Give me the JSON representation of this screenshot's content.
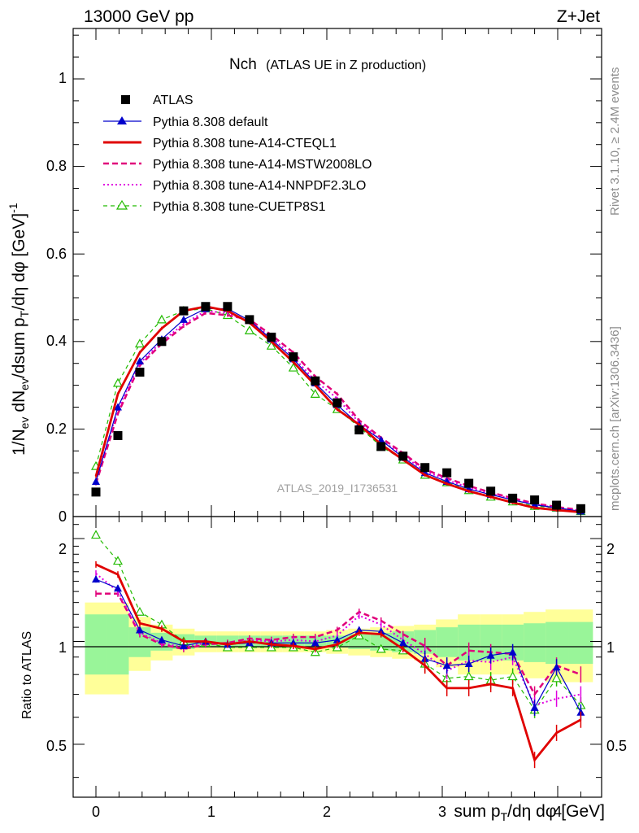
{
  "header": {
    "left": "13000 GeV pp",
    "right": "Z+Jet"
  },
  "side_text": {
    "rivet": "Rivet 3.1.10, ≥ 2.4M events",
    "mcplots": "mcplots.cern.ch [arXiv:1306.3436]"
  },
  "colors": {
    "atlas": "#000000",
    "default": "#0000cc",
    "cteql1": "#e00000",
    "mstw": "#e0007a",
    "nnpdf": "#e000e0",
    "cuetp8s1": "#22bb00",
    "band_inner": "#99f599",
    "band_outer": "#ffff99"
  },
  "chart_data": {
    "type": "line",
    "title": "Nch",
    "subtitle": "(ATLAS UE in Z production)",
    "analysis_tag": "ATLAS_2019_I1736531",
    "xlabel": "sum p_T/dη dφ [GeV]",
    "ylabel": "1/N_ev dN_ev/dsum p_T/dη dφ [GeV]^-1",
    "ratio_ylabel": "Ratio to ATLAS",
    "xlim": [
      -0.1,
      4.35
    ],
    "ylim": [
      0,
      1.12
    ],
    "ratio_ylim": [
      0.35,
      2.32
    ],
    "x_ticks": [
      "0",
      "1",
      "2",
      "3",
      "4"
    ],
    "y_ticks": [
      "0",
      "0.2",
      "0.4",
      "0.6",
      "0.8",
      "1"
    ],
    "ratio_ticks": [
      "0.5",
      "1",
      "2"
    ],
    "grid": false,
    "legend_position": "top-left",
    "x": [
      0.0,
      0.19,
      0.38,
      0.57,
      0.76,
      0.95,
      1.14,
      1.33,
      1.52,
      1.71,
      1.9,
      2.09,
      2.28,
      2.47,
      2.66,
      2.85,
      3.04,
      3.23,
      3.42,
      3.61,
      3.8,
      3.99,
      4.2
    ],
    "atlas": [
      0.056,
      0.185,
      0.33,
      0.4,
      0.47,
      0.48,
      0.48,
      0.45,
      0.41,
      0.365,
      0.31,
      0.26,
      0.198,
      0.16,
      0.138,
      0.112,
      0.1,
      0.076,
      0.058,
      0.042,
      0.038,
      0.026,
      0.018
    ],
    "ratio_band_inner": [
      0.2,
      0.2,
      0.1,
      0.06,
      0.05,
      0.04,
      0.04,
      0.04,
      0.04,
      0.04,
      0.04,
      0.04,
      0.05,
      0.06,
      0.07,
      0.08,
      0.1,
      0.12,
      0.12,
      0.12,
      0.13,
      0.14,
      0.14
    ],
    "ratio_band_outer": [
      0.3,
      0.3,
      0.18,
      0.12,
      0.09,
      0.07,
      0.07,
      0.07,
      0.07,
      0.07,
      0.07,
      0.08,
      0.09,
      0.1,
      0.11,
      0.12,
      0.16,
      0.2,
      0.2,
      0.2,
      0.22,
      0.24,
      0.24
    ],
    "series": [
      {
        "name": "Pythia 8.308 default",
        "key": "default",
        "style": "solid-thin",
        "marker": "filled-triangle",
        "values": [
          0.08,
          0.25,
          0.355,
          0.405,
          0.45,
          0.475,
          0.475,
          0.448,
          0.405,
          0.36,
          0.305,
          0.255,
          0.21,
          0.175,
          0.135,
          0.1,
          0.08,
          0.063,
          0.05,
          0.038,
          0.027,
          0.02,
          0.012
        ],
        "ratio": [
          1.52,
          1.43,
          1.08,
          1.01,
          0.97,
          1.0,
          0.98,
          0.99,
          0.99,
          0.99,
          0.99,
          1.01,
          1.08,
          1.07,
          0.99,
          0.89,
          0.85,
          0.86,
          0.91,
          0.93,
          0.64,
          0.84,
          0.62
        ]
      },
      {
        "name": "Pythia 8.308 tune-A14-CTEQL1",
        "key": "cteql1",
        "style": "solid-thick",
        "marker": "none",
        "values": [
          0.092,
          0.28,
          0.375,
          0.43,
          0.47,
          0.48,
          0.47,
          0.443,
          0.4,
          0.353,
          0.3,
          0.245,
          0.21,
          0.165,
          0.13,
          0.095,
          0.075,
          0.058,
          0.045,
          0.032,
          0.02,
          0.015,
          0.01
        ],
        "ratio": [
          1.68,
          1.57,
          1.13,
          1.09,
          1.0,
          1.0,
          0.98,
          1.0,
          0.98,
          0.97,
          0.95,
          0.98,
          1.06,
          1.05,
          0.95,
          0.85,
          0.73,
          0.73,
          0.75,
          0.73,
          0.45,
          0.54,
          0.59
        ]
      },
      {
        "name": "Pythia 8.308 tune-A14-MSTW2008LO",
        "key": "mstw",
        "style": "dashed",
        "marker": "none",
        "values": [
          0.075,
          0.235,
          0.345,
          0.395,
          0.435,
          0.465,
          0.46,
          0.45,
          0.415,
          0.375,
          0.32,
          0.28,
          0.22,
          0.18,
          0.145,
          0.108,
          0.088,
          0.07,
          0.055,
          0.042,
          0.03,
          0.022,
          0.015
        ],
        "ratio": [
          1.38,
          1.38,
          1.05,
          0.98,
          0.95,
          0.98,
          0.99,
          1.02,
          1.01,
          1.03,
          1.03,
          1.08,
          1.22,
          1.15,
          1.05,
          0.97,
          0.85,
          0.94,
          0.93,
          0.92,
          0.7,
          0.85,
          0.8
        ]
      },
      {
        "name": "Pythia 8.308 tune-A14-NNPDF2.3LO",
        "key": "nnpdf",
        "style": "dotted",
        "marker": "none",
        "values": [
          0.082,
          0.245,
          0.35,
          0.4,
          0.44,
          0.47,
          0.465,
          0.445,
          0.41,
          0.365,
          0.31,
          0.27,
          0.215,
          0.175,
          0.14,
          0.104,
          0.084,
          0.066,
          0.052,
          0.04,
          0.028,
          0.02,
          0.013
        ],
        "ratio": [
          1.58,
          1.4,
          1.06,
          0.99,
          0.96,
          0.99,
          0.98,
          1.01,
          1.0,
          1.01,
          1.0,
          1.04,
          1.19,
          1.12,
          1.01,
          0.92,
          0.82,
          0.88,
          0.87,
          0.9,
          0.65,
          0.68,
          0.7
        ]
      },
      {
        "name": "Pythia 8.308 tune-CUETP8S1",
        "key": "cuetp8s1",
        "style": "dashed-thin",
        "marker": "open-triangle",
        "values": [
          0.115,
          0.305,
          0.395,
          0.45,
          0.47,
          0.475,
          0.46,
          0.425,
          0.39,
          0.34,
          0.28,
          0.245,
          0.205,
          0.16,
          0.13,
          0.095,
          0.078,
          0.06,
          0.045,
          0.034,
          0.024,
          0.02,
          0.012
        ],
        "ratio": [
          2.05,
          1.72,
          1.22,
          1.12,
          1.0,
          0.99,
          0.96,
          0.96,
          0.96,
          0.96,
          0.93,
          0.96,
          1.04,
          0.95,
          0.94,
          0.86,
          0.78,
          0.79,
          0.77,
          0.79,
          0.63,
          0.78,
          0.65
        ]
      }
    ],
    "legend": {
      "atlas": "ATLAS"
    }
  }
}
